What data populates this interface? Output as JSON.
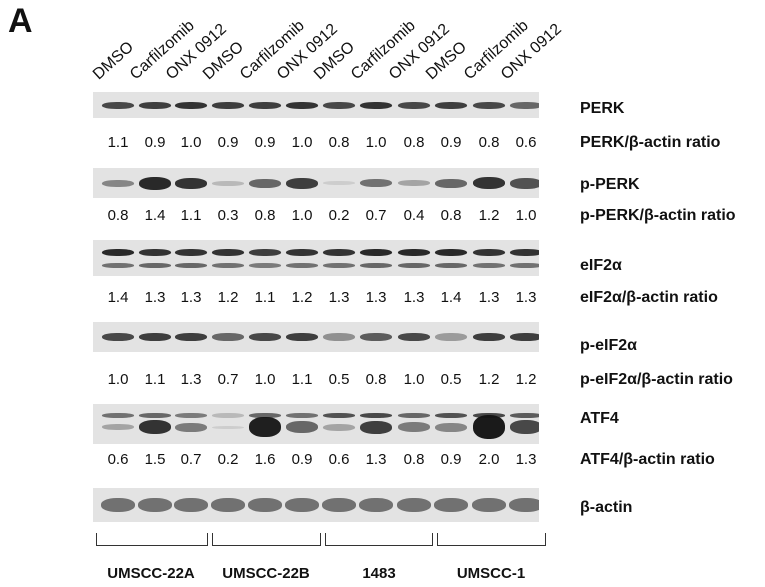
{
  "panel_letter": "A",
  "lanes": [
    "DMSO",
    "Carfilzomib",
    "ONX 0912",
    "DMSO",
    "Carfilzomib",
    "ONX 0912",
    "DMSO",
    "Carfilzomib",
    "ONX 0912",
    "DMSO",
    "Carfilzomib",
    "ONX 0912"
  ],
  "blots": [
    {
      "label": "PERK",
      "ratio_label": "PERK/β-actin ratio",
      "ratios": [
        "1.1",
        "0.9",
        "1.0",
        "0.9",
        "0.9",
        "1.0",
        "0.8",
        "1.0",
        "0.8",
        "0.9",
        "0.8",
        "0.6"
      ]
    },
    {
      "label": "p-PERK",
      "ratio_label": "p-PERK/β-actin ratio",
      "ratios": [
        "0.8",
        "1.4",
        "1.1",
        "0.3",
        "0.8",
        "1.0",
        "0.2",
        "0.7",
        "0.4",
        "0.8",
        "1.2",
        "1.0"
      ]
    },
    {
      "label": "eIF2α",
      "ratio_label": "eIF2α/β-actin ratio",
      "ratios": [
        "1.4",
        "1.3",
        "1.3",
        "1.2",
        "1.1",
        "1.2",
        "1.3",
        "1.3",
        "1.3",
        "1.4",
        "1.3",
        "1.3"
      ]
    },
    {
      "label": "p-eIF2α",
      "ratio_label": "p-eIF2α/β-actin ratio",
      "ratios": [
        "1.0",
        "1.1",
        "1.3",
        "0.7",
        "1.0",
        "1.1",
        "0.5",
        "0.8",
        "1.0",
        "0.5",
        "1.2",
        "1.2"
      ]
    },
    {
      "label": "ATF4",
      "ratio_label": "ATF4/β-actin ratio",
      "ratios": [
        "0.6",
        "1.5",
        "0.7",
        "0.2",
        "1.6",
        "0.9",
        "0.6",
        "1.3",
        "0.8",
        "0.9",
        "2.0",
        "1.3"
      ]
    },
    {
      "label": "β-actin",
      "ratio_label": "",
      "ratios": []
    }
  ],
  "groups": [
    "UMSCC-22A",
    "UMSCC-22B",
    "1483",
    "UMSCC-1"
  ]
}
